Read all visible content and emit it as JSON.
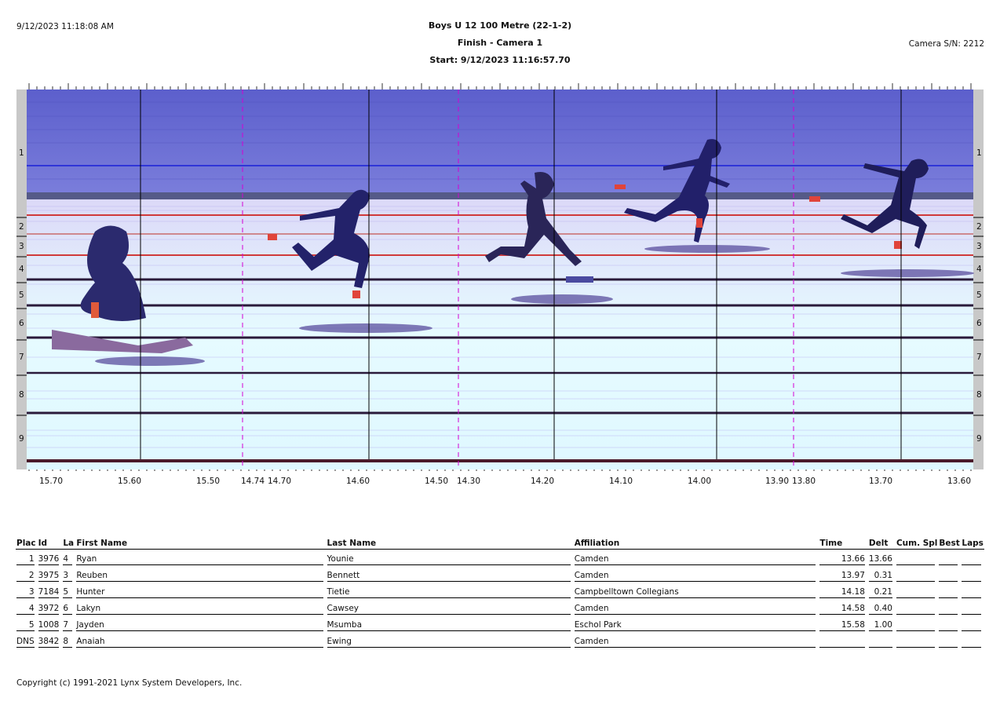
{
  "header": {
    "timestamp": "9/12/2023 11:18:08 AM",
    "event_title": "Boys U 12 100 Metre (22-1-2)",
    "camera_view": "Finish - Camera 1",
    "start_time": "Start: 9/12/2023 11:16:57.70",
    "camera_serial": "Camera S/N: 2212"
  },
  "photo": {
    "lane_labels": [
      "1",
      "2",
      "3",
      "4",
      "5",
      "6",
      "7",
      "8",
      "9"
    ],
    "time_axis_labels": [
      "15.70",
      "15.60",
      "15.50",
      "14.74",
      "14.70",
      "14.60",
      "14.50",
      "14.30",
      "14.20",
      "14.10",
      "14.00",
      "13.90",
      "13.80",
      "13.70",
      "13.60"
    ],
    "colors": {
      "sky": "#6f71d6",
      "track": "#e4fbff",
      "lane_line": "#2a1a3a",
      "guide_dash": "#d400d4",
      "red_line": "#d03a3a"
    }
  },
  "table": {
    "headers": [
      "Plac",
      "Id",
      "La",
      "First Name",
      "Last Name",
      "Affiliation",
      "Time",
      "Delt",
      "Cum. Spl",
      "Best",
      "Laps"
    ],
    "rows": [
      [
        "1",
        "3976",
        "4",
        "Ryan",
        "Younie",
        "Camden",
        "13.66",
        "13.66",
        "",
        "",
        ""
      ],
      [
        "2",
        "3975",
        "3",
        "Reuben",
        "Bennett",
        "Camden",
        "13.97",
        "0.31",
        "",
        "",
        ""
      ],
      [
        "3",
        "7184",
        "5",
        "Hunter",
        "Tietie",
        "Campbelltown Collegians",
        "14.18",
        "0.21",
        "",
        "",
        ""
      ],
      [
        "4",
        "3972",
        "6",
        "Lakyn",
        "Cawsey",
        "Camden",
        "14.58",
        "0.40",
        "",
        "",
        ""
      ],
      [
        "5",
        "1008",
        "7",
        "Jayden",
        "Msumba",
        "Eschol Park",
        "15.58",
        "1.00",
        "",
        "",
        ""
      ],
      [
        "DNS",
        "3842",
        "8",
        "Anaiah",
        "Ewing",
        "Camden",
        "",
        "",
        "",
        "",
        ""
      ]
    ]
  },
  "footer": {
    "copyright": "Copyright (c) 1991-2021 Lynx System Developers, Inc."
  }
}
